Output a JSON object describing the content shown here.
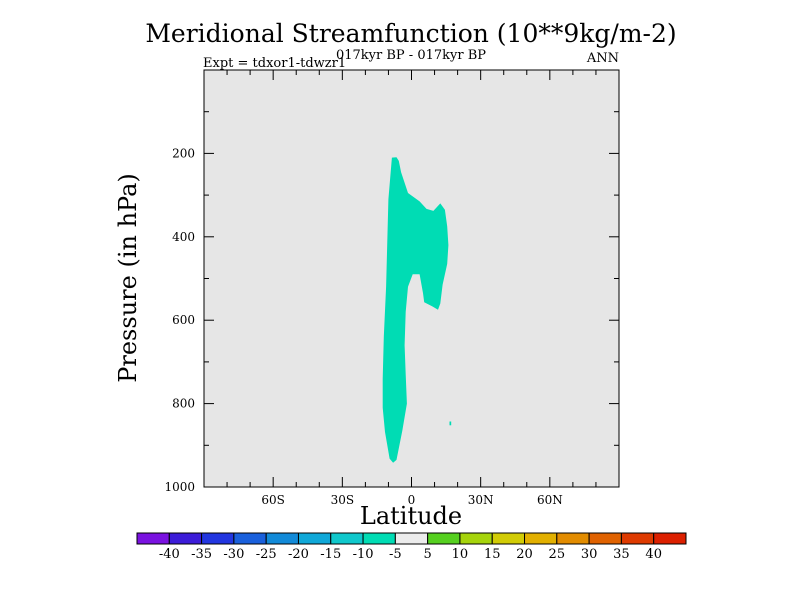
{
  "chart_data": {
    "type": "heatmap",
    "title": "Meridional Streamfunction (10**9kg/m-2)",
    "subtitle": "017kyr BP - 017kyr BP",
    "left_label": "Expt = tdxor1-tdwzr1",
    "right_label": "ANN",
    "xlabel": "Latitude",
    "ylabel": "Pressure (in hPa)",
    "xlim": [
      -90,
      90
    ],
    "ylim": [
      1000,
      0
    ],
    "x_ticks": [
      {
        "value": -60,
        "label": "60S"
      },
      {
        "value": -30,
        "label": "30S"
      },
      {
        "value": 0,
        "label": "0"
      },
      {
        "value": 30,
        "label": "30N"
      },
      {
        "value": 60,
        "label": "60N"
      }
    ],
    "y_ticks": [
      {
        "value": 200,
        "label": "200"
      },
      {
        "value": 400,
        "label": "400"
      },
      {
        "value": 600,
        "label": "600"
      },
      {
        "value": 800,
        "label": "800"
      },
      {
        "value": 1000,
        "label": "1000"
      }
    ],
    "background_color": "#e6e6e6",
    "levels": [
      -40,
      -35,
      -30,
      -25,
      -20,
      -15,
      -10,
      -5,
      5,
      10,
      15,
      20,
      25,
      30,
      35,
      40
    ],
    "colors": [
      "#7a12e0",
      "#3c1cd8",
      "#2236e0",
      "#1a60dc",
      "#128ad8",
      "#10a8d8",
      "#10c8cc",
      "#00dcb4",
      "#ececec",
      "#56d020",
      "#a6d40c",
      "#d2cc06",
      "#e2b000",
      "#e28c00",
      "#e06200",
      "#de3a00",
      "#dc2000"
    ],
    "regions": [
      {
        "level_range": "-10 to -5",
        "color": "#00dcb4",
        "outline": [
          [
            -8.5,
            210
          ],
          [
            -6.5,
            209
          ],
          [
            -5.5,
            218
          ],
          [
            -4.5,
            245
          ],
          [
            -1.5,
            295
          ],
          [
            3.5,
            315
          ],
          [
            6.5,
            333
          ],
          [
            9.5,
            338
          ],
          [
            12.5,
            320
          ],
          [
            14.5,
            335
          ],
          [
            15.5,
            375
          ],
          [
            16.0,
            420
          ],
          [
            15.5,
            465
          ],
          [
            13.5,
            515
          ],
          [
            12.5,
            560
          ],
          [
            11.5,
            575
          ],
          [
            9.0,
            567
          ],
          [
            5.5,
            557
          ],
          [
            5.0,
            535
          ],
          [
            3.5,
            490
          ],
          [
            0.5,
            490
          ],
          [
            -1.5,
            520
          ],
          [
            -2.5,
            580
          ],
          [
            -3.0,
            660
          ],
          [
            -2.5,
            730
          ],
          [
            -2.0,
            800
          ],
          [
            -4.0,
            865
          ],
          [
            -6.5,
            935
          ],
          [
            -8.0,
            942
          ],
          [
            -9.5,
            932
          ],
          [
            -11.5,
            868
          ],
          [
            -12.5,
            810
          ],
          [
            -12.5,
            740
          ],
          [
            -12.0,
            640
          ],
          [
            -11.0,
            520
          ],
          [
            -10.5,
            410
          ],
          [
            -10.0,
            310
          ]
        ]
      },
      {
        "level_range": "-10 to -5",
        "color": "#00dcb4",
        "outline": [
          [
            16.5,
            843
          ],
          [
            17.2,
            843
          ],
          [
            17.2,
            852
          ],
          [
            16.5,
            852
          ]
        ]
      }
    ]
  }
}
